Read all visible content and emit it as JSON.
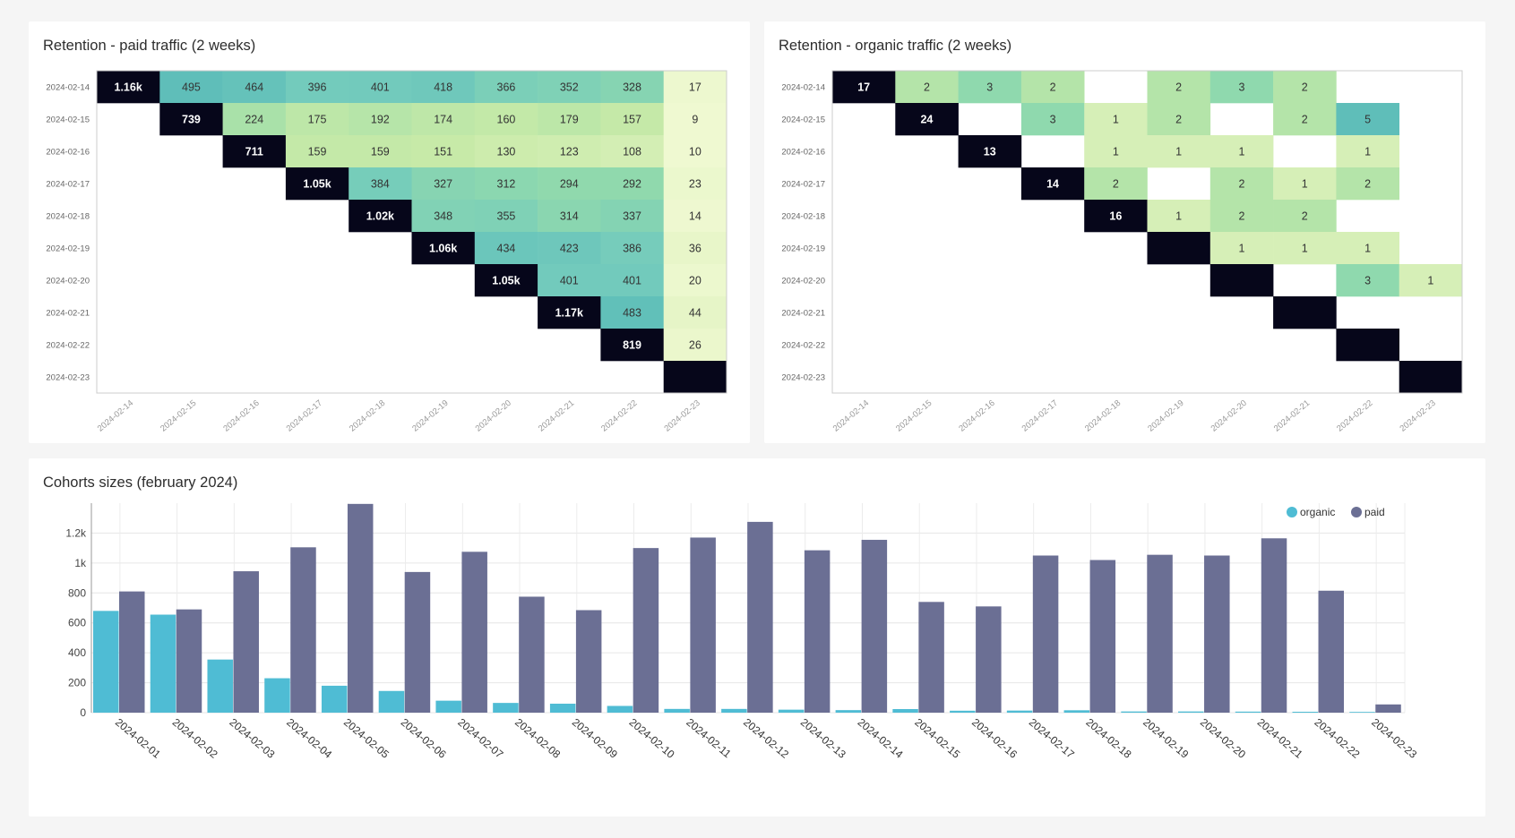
{
  "panels": {
    "paid_title": "Retention - paid traffic (2 weeks)",
    "organic_title": "Retention - organic traffic (2 weeks)",
    "cohorts_title": "Cohorts sizes (february 2024)"
  },
  "chart_data": [
    {
      "type": "heatmap",
      "title": "Retention - paid traffic (2 weeks)",
      "rows": [
        "2024-02-14",
        "2024-02-15",
        "2024-02-16",
        "2024-02-17",
        "2024-02-18",
        "2024-02-19",
        "2024-02-20",
        "2024-02-21",
        "2024-02-22",
        "2024-02-23"
      ],
      "cols": [
        "2024-02-14",
        "2024-02-15",
        "2024-02-16",
        "2024-02-17",
        "2024-02-18",
        "2024-02-19",
        "2024-02-20",
        "2024-02-21",
        "2024-02-22",
        "2024-02-23"
      ],
      "cells": [
        [
          1160,
          495,
          464,
          396,
          401,
          418,
          366,
          352,
          328,
          17
        ],
        [
          null,
          739,
          224,
          175,
          192,
          174,
          160,
          179,
          157,
          9
        ],
        [
          null,
          null,
          711,
          159,
          159,
          151,
          130,
          123,
          108,
          10
        ],
        [
          null,
          null,
          null,
          1050,
          384,
          327,
          312,
          294,
          292,
          23
        ],
        [
          null,
          null,
          null,
          null,
          1020,
          348,
          355,
          314,
          337,
          14
        ],
        [
          null,
          null,
          null,
          null,
          null,
          1060,
          434,
          423,
          386,
          36
        ],
        [
          null,
          null,
          null,
          null,
          null,
          null,
          1050,
          401,
          401,
          20
        ],
        [
          null,
          null,
          null,
          null,
          null,
          null,
          null,
          1170,
          483,
          44
        ],
        [
          null,
          null,
          null,
          null,
          null,
          null,
          null,
          null,
          819,
          26
        ],
        [
          null,
          null,
          null,
          null,
          null,
          null,
          null,
          null,
          null,
          null
        ]
      ],
      "labels": [
        [
          "1.16k",
          "495",
          "464",
          "396",
          "401",
          "418",
          "366",
          "352",
          "328",
          "17"
        ],
        [
          "",
          "739",
          "224",
          "175",
          "192",
          "174",
          "160",
          "179",
          "157",
          "9"
        ],
        [
          "",
          "",
          "711",
          "159",
          "159",
          "151",
          "130",
          "123",
          "108",
          "10"
        ],
        [
          "",
          "",
          "",
          "1.05k",
          "384",
          "327",
          "312",
          "294",
          "292",
          "23"
        ],
        [
          "",
          "",
          "",
          "",
          "1.02k",
          "348",
          "355",
          "314",
          "337",
          "14"
        ],
        [
          "",
          "",
          "",
          "",
          "",
          "1.06k",
          "434",
          "423",
          "386",
          "36"
        ],
        [
          "",
          "",
          "",
          "",
          "",
          "",
          "1.05k",
          "401",
          "401",
          "20"
        ],
        [
          "",
          "",
          "",
          "",
          "",
          "",
          "",
          "1.17k",
          "483",
          "44"
        ],
        [
          "",
          "",
          "",
          "",
          "",
          "",
          "",
          "",
          "819",
          "26"
        ],
        [
          "",
          "",
          "",
          "",
          "",
          "",
          "",
          "",
          "",
          ""
        ]
      ],
      "diagonal_dark": true
    },
    {
      "type": "heatmap",
      "title": "Retention - organic traffic (2 weeks)",
      "rows": [
        "2024-02-14",
        "2024-02-15",
        "2024-02-16",
        "2024-02-17",
        "2024-02-18",
        "2024-02-19",
        "2024-02-20",
        "2024-02-21",
        "2024-02-22",
        "2024-02-23"
      ],
      "cols": [
        "2024-02-14",
        "2024-02-15",
        "2024-02-16",
        "2024-02-17",
        "2024-02-18",
        "2024-02-19",
        "2024-02-20",
        "2024-02-21",
        "2024-02-22",
        "2024-02-23"
      ],
      "cells": [
        [
          17,
          2,
          3,
          2,
          null,
          2,
          3,
          2,
          null,
          null
        ],
        [
          null,
          24,
          null,
          3,
          1,
          2,
          null,
          2,
          5,
          null
        ],
        [
          null,
          null,
          13,
          null,
          1,
          1,
          1,
          null,
          1,
          null
        ],
        [
          null,
          null,
          null,
          14,
          2,
          null,
          2,
          1,
          2,
          null
        ],
        [
          null,
          null,
          null,
          null,
          16,
          1,
          2,
          2,
          null,
          null
        ],
        [
          null,
          null,
          null,
          null,
          null,
          null,
          1,
          1,
          1,
          null
        ],
        [
          null,
          null,
          null,
          null,
          null,
          null,
          null,
          null,
          3,
          1
        ],
        [
          null,
          null,
          null,
          null,
          null,
          null,
          null,
          null,
          null,
          null
        ],
        [
          null,
          null,
          null,
          null,
          null,
          null,
          null,
          null,
          null,
          null
        ],
        [
          null,
          null,
          null,
          null,
          null,
          null,
          null,
          null,
          null,
          null
        ]
      ],
      "labels": [
        [
          "17",
          "2",
          "3",
          "2",
          "",
          "2",
          "3",
          "2",
          "",
          ""
        ],
        [
          "",
          "24",
          "",
          "3",
          "1",
          "2",
          "",
          "2",
          "5",
          ""
        ],
        [
          "",
          "",
          "13",
          "",
          "1",
          "1",
          "1",
          "",
          "1",
          ""
        ],
        [
          "",
          "",
          "",
          "14",
          "2",
          "",
          "2",
          "1",
          "2",
          ""
        ],
        [
          "",
          "",
          "",
          "",
          "16",
          "1",
          "2",
          "2",
          "",
          ""
        ],
        [
          "",
          "",
          "",
          "",
          "",
          "",
          "1",
          "1",
          "1",
          ""
        ],
        [
          "",
          "",
          "",
          "",
          "",
          "",
          "",
          "",
          "3",
          "1"
        ],
        [
          "",
          "",
          "",
          "",
          "",
          "",
          "",
          "",
          "",
          ""
        ],
        [
          "",
          "",
          "",
          "",
          "",
          "",
          "",
          "",
          "",
          ""
        ],
        [
          "",
          "",
          "",
          "",
          "",
          "",
          "",
          "",
          "",
          ""
        ]
      ],
      "diagonal_dark": true
    },
    {
      "type": "bar",
      "title": "Cohorts sizes (february 2024)",
      "categories": [
        "2024-02-01",
        "2024-02-02",
        "2024-02-03",
        "2024-02-04",
        "2024-02-05",
        "2024-02-06",
        "2024-02-07",
        "2024-02-08",
        "2024-02-09",
        "2024-02-10",
        "2024-02-11",
        "2024-02-12",
        "2024-02-13",
        "2024-02-14",
        "2024-02-15",
        "2024-02-16",
        "2024-02-17",
        "2024-02-18",
        "2024-02-19",
        "2024-02-20",
        "2024-02-21",
        "2024-02-22",
        "2024-02-23"
      ],
      "series": [
        {
          "name": "organic",
          "color": "#4fbcd4",
          "values": [
            680,
            655,
            355,
            230,
            180,
            145,
            80,
            65,
            60,
            45,
            25,
            25,
            20,
            17,
            24,
            13,
            14,
            16,
            8,
            8,
            7,
            6,
            5
          ]
        },
        {
          "name": "paid",
          "color": "#6b6f94",
          "values": [
            810,
            690,
            945,
            1105,
            1395,
            940,
            1075,
            775,
            685,
            1100,
            1170,
            1275,
            1085,
            1155,
            740,
            710,
            1050,
            1020,
            1055,
            1050,
            1165,
            815,
            55
          ]
        }
      ],
      "yticks": [
        0,
        200,
        400,
        600,
        800,
        1000,
        1200
      ],
      "ytick_labels": [
        "0",
        "200",
        "400",
        "600",
        "800",
        "1k",
        "1.2k"
      ],
      "ylim": [
        0,
        1400
      ],
      "legend": "top-right",
      "grid": true
    }
  ]
}
